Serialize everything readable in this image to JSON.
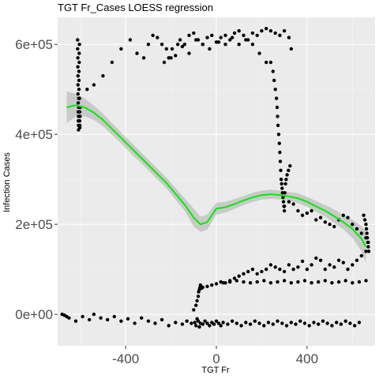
{
  "chart_data": {
    "type": "scatter",
    "title": "TGT Fr_Cases LOESS regression",
    "xlabel": "TGT Fr",
    "ylabel": "Infection Cases",
    "xlim": [
      -700,
      700
    ],
    "ylim": [
      -70000,
      660000
    ],
    "x_ticks": [
      {
        "value": -400,
        "label": "-400"
      },
      {
        "value": 0,
        "label": "0"
      },
      {
        "value": 400,
        "label": "400"
      }
    ],
    "y_ticks": [
      {
        "value": 0,
        "label": "0e+00"
      },
      {
        "value": 200000,
        "label": "2e+05"
      },
      {
        "value": 400000,
        "label": "4e+05"
      },
      {
        "value": 600000,
        "label": "6e+05"
      }
    ],
    "grid": true,
    "point_color": "#000000",
    "smooth_color": "#00ee00",
    "band_color": "#bdbdbd",
    "panel_color": "#ebebeb",
    "series": [
      {
        "kind": "points",
        "x": [
          -680,
          -670,
          -660,
          -650,
          -620,
          -590,
          -560,
          -540,
          -510,
          -480,
          -450,
          -420,
          -390,
          -360,
          -330,
          -300,
          -270,
          -240,
          -210,
          -180,
          -150,
          -130,
          -110,
          -95,
          -90,
          -85,
          -80,
          -75,
          -70,
          -60,
          -50,
          -40,
          -30,
          -20,
          -10,
          0,
          10,
          20,
          30,
          50,
          70,
          90,
          110,
          130,
          150,
          170,
          190,
          210,
          230,
          250,
          270,
          290,
          310,
          330,
          350,
          370,
          390,
          410,
          430,
          450,
          470,
          490,
          510,
          530,
          550,
          570,
          590,
          610,
          630,
          -612,
          -612,
          -611,
          -611,
          -610,
          -610,
          -610,
          -609,
          -609,
          -609,
          -608,
          -608,
          -608,
          -607,
          -607,
          -606,
          -606,
          -606,
          -605,
          -605,
          -604,
          -604,
          -603,
          -603,
          -602,
          -602,
          -601,
          -601,
          -570,
          -540,
          -500,
          -460,
          -420,
          -380,
          -350,
          -320,
          -300,
          -280,
          -260,
          -240,
          -220,
          -200,
          -180,
          -160,
          -140,
          -120,
          -100,
          -80,
          -60,
          -40,
          -20,
          0,
          20,
          40,
          60,
          80,
          100,
          120,
          140,
          160,
          180,
          200,
          220,
          240,
          260,
          280,
          300,
          320,
          330,
          -230,
          -210,
          -195,
          -170,
          -150,
          -120,
          -90,
          -60,
          -30,
          10,
          40,
          70,
          100,
          130,
          160,
          190,
          220,
          240,
          250,
          255,
          260,
          265,
          268,
          270,
          272,
          275,
          278,
          280,
          282,
          284,
          286,
          288,
          290,
          292,
          294,
          296,
          298,
          300,
          302,
          305,
          308,
          312,
          318,
          325,
          300,
          320,
          340,
          360,
          380,
          400,
          420,
          440,
          460,
          480,
          500,
          520,
          540,
          560,
          580,
          600,
          620,
          640,
          660,
          670,
          650,
          655,
          660,
          662,
          664,
          666,
          668,
          670,
          672,
          660,
          640,
          620,
          600,
          580,
          560,
          540,
          520,
          500,
          480,
          460,
          440,
          420,
          400,
          380,
          360,
          340,
          320,
          300,
          280,
          260,
          240,
          220,
          200,
          180,
          160,
          140,
          120,
          100,
          80,
          60,
          40,
          20,
          -100,
          -90,
          -85,
          -80,
          -78,
          -75,
          -72,
          -70,
          -68,
          -65,
          -60,
          -40,
          -20,
          0,
          30,
          60,
          90,
          120,
          150,
          180,
          210,
          240,
          270,
          300,
          330,
          360,
          390,
          420,
          450,
          480,
          510,
          540,
          570,
          600,
          630,
          660
        ],
        "y": [
          0,
          -2000,
          -5000,
          -8000,
          -15000,
          -5000,
          -12000,
          0,
          -8000,
          -12000,
          -5000,
          -15000,
          -10000,
          -20000,
          -8000,
          -15000,
          -20000,
          -12000,
          -25000,
          -18000,
          -22000,
          -15000,
          -20000,
          -18000,
          -25000,
          -10000,
          -15000,
          -28000,
          -20000,
          -22000,
          -15000,
          -20000,
          -25000,
          -18000,
          -22000,
          -15000,
          -20000,
          -25000,
          -18000,
          -22000,
          -15000,
          -20000,
          -25000,
          -18000,
          -22000,
          -15000,
          -20000,
          -25000,
          -18000,
          -22000,
          -15000,
          -20000,
          -25000,
          -18000,
          -22000,
          -15000,
          -20000,
          -25000,
          -18000,
          -22000,
          -15000,
          -20000,
          -25000,
          -18000,
          -22000,
          -15000,
          -20000,
          -25000,
          -18000,
          610000,
          590000,
          570000,
          550000,
          530000,
          510000,
          490000,
          470000,
          450000,
          430000,
          420000,
          410000,
          440000,
          460000,
          480000,
          500000,
          520000,
          540000,
          560000,
          580000,
          600000,
          480000,
          450000,
          430000,
          420000,
          415000,
          440000,
          460000,
          500000,
          510000,
          530000,
          560000,
          590000,
          610000,
          580000,
          570000,
          600000,
          620000,
          615000,
          600000,
          590000,
          570000,
          575000,
          610000,
          600000,
          620000,
          625000,
          610000,
          600000,
          615000,
          620000,
          605000,
          615000,
          600000,
          610000,
          625000,
          630000,
          620000,
          610000,
          625000,
          620000,
          630000,
          635000,
          630000,
          625000,
          620000,
          630000,
          615000,
          590000,
          560000,
          570000,
          590000,
          600000,
          595000,
          580000,
          610000,
          600000,
          590000,
          605000,
          620000,
          615000,
          600000,
          610000,
          600000,
          580000,
          560000,
          560000,
          540000,
          520000,
          500000,
          480000,
          460000,
          440000,
          420000,
          400000,
          380000,
          360000,
          340000,
          320000,
          300000,
          290000,
          280000,
          270000,
          260000,
          250000,
          240000,
          230000,
          270000,
          290000,
          300000,
          310000,
          320000,
          330000,
          240000,
          250000,
          245000,
          230000,
          220000,
          225000,
          230000,
          210000,
          215000,
          205000,
          200000,
          195000,
          210000,
          220000,
          215000,
          200000,
          190000,
          180000,
          170000,
          160000,
          220000,
          210000,
          200000,
          190000,
          180000,
          170000,
          160000,
          150000,
          140000,
          140000,
          130000,
          120000,
          110000,
          100000,
          115000,
          120000,
          105000,
          110000,
          100000,
          120000,
          125000,
          110000,
          100000,
          118000,
          105000,
          100000,
          110000,
          95000,
          100000,
          105000,
          110000,
          100000,
          95000,
          90000,
          100000,
          95000,
          90000,
          85000,
          80000,
          75000,
          70000,
          72000,
          10000,
          20000,
          30000,
          40000,
          50000,
          55000,
          60000,
          65000,
          62000,
          58000,
          60000,
          62000,
          65000,
          68000,
          70000,
          72000,
          75000,
          72000,
          70000,
          72000,
          75000,
          70000,
          72000,
          75000,
          70000,
          72000,
          75000,
          70000,
          72000,
          75000,
          70000,
          72000,
          75000,
          70000,
          72000,
          75000
        ]
      },
      {
        "kind": "smooth",
        "x": [
          -660,
          -620,
          -580,
          -540,
          -500,
          -460,
          -420,
          -380,
          -340,
          -300,
          -260,
          -220,
          -180,
          -140,
          -100,
          -70,
          -40,
          0,
          40,
          80,
          120,
          160,
          200,
          240,
          280,
          320,
          360,
          400,
          440,
          480,
          520,
          560,
          600,
          640,
          660
        ],
        "y": [
          460000,
          465000,
          460000,
          448000,
          432000,
          412000,
          392000,
          372000,
          352000,
          332000,
          312000,
          292000,
          268000,
          244000,
          215000,
          200000,
          205000,
          235000,
          238000,
          245000,
          253000,
          260000,
          265000,
          267000,
          265000,
          262000,
          258000,
          250000,
          240000,
          230000,
          218000,
          205000,
          190000,
          168000,
          150000
        ],
        "y_lower": [
          425000,
          440000,
          440000,
          432000,
          418000,
          399000,
          380000,
          360000,
          340000,
          320000,
          300000,
          280000,
          255000,
          230000,
          195000,
          183000,
          188000,
          222000,
          226000,
          234000,
          243000,
          250000,
          255000,
          257000,
          255000,
          252000,
          247000,
          239000,
          228000,
          217000,
          203000,
          189000,
          170000,
          140000,
          115000
        ],
        "y_upper": [
          495000,
          490000,
          480000,
          464000,
          446000,
          425000,
          404000,
          384000,
          364000,
          344000,
          324000,
          304000,
          281000,
          258000,
          235000,
          217000,
          222000,
          248000,
          250000,
          256000,
          263000,
          270000,
          275000,
          277000,
          275000,
          272000,
          269000,
          261000,
          252000,
          243000,
          233000,
          221000,
          210000,
          196000,
          185000
        ]
      }
    ]
  }
}
